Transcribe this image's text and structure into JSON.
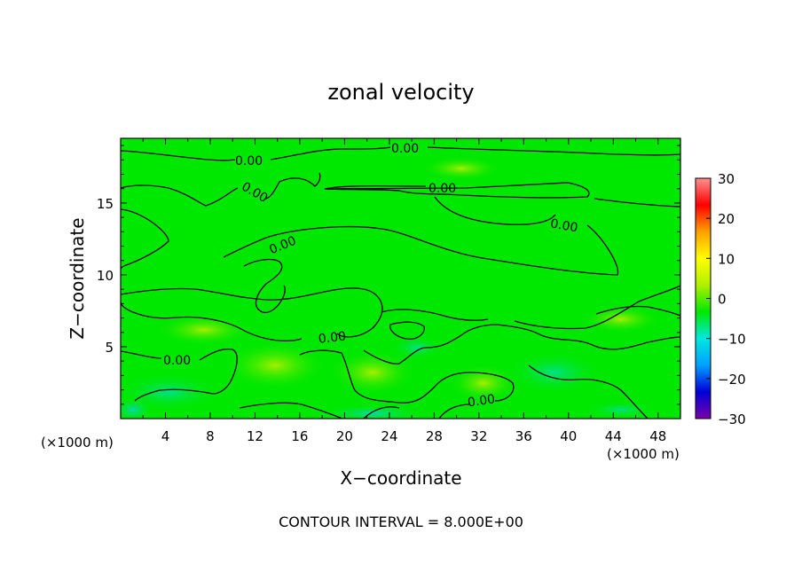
{
  "chart_data": {
    "type": "heatmap",
    "title": "zonal velocity",
    "xlabel": "X−coordinate",
    "ylabel": "Z−coordinate",
    "x_unit_label": "(×1000 m)",
    "z_unit_label": "(×1000 m)",
    "xlim": [
      0,
      50
    ],
    "ylim": [
      0,
      19.5
    ],
    "x_ticks": [
      "4",
      "8",
      "12",
      "16",
      "20",
      "24",
      "28",
      "32",
      "36",
      "40",
      "44",
      "48"
    ],
    "y_ticks": [
      "5",
      "10",
      "15"
    ],
    "colorbar": {
      "range": [
        -30,
        30
      ],
      "ticks": [
        "30",
        "20",
        "10",
        "0",
        "−10",
        "−20",
        "−30"
      ],
      "colors": [
        "#7a00a8",
        "#0000d8",
        "#00a0ff",
        "#00e8e0",
        "#00e800",
        "#b0f000",
        "#ffff00",
        "#ffa000",
        "#ff0000",
        "#ff9090"
      ]
    },
    "contour_level_label": "0.00",
    "contour_labels": [
      "0.00",
      "0.00",
      "0.00",
      "0.00",
      "0.00",
      "0.00",
      "0.00",
      "0.00",
      "0.00"
    ],
    "footer": "CONTOUR INTERVAL = 8.000E+00",
    "field_color_dominant": "#00e800",
    "grid": false
  }
}
